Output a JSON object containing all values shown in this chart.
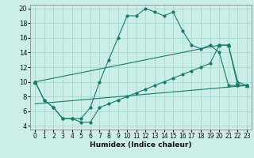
{
  "title": "",
  "xlabel": "Humidex (Indice chaleur)",
  "bg_color": "#cceee8",
  "grid_color": "#aaddcc",
  "line_color": "#1a7a6a",
  "xlim": [
    -0.5,
    23.5
  ],
  "ylim": [
    3.5,
    20.5
  ],
  "xticks": [
    0,
    1,
    2,
    3,
    4,
    5,
    6,
    7,
    8,
    9,
    10,
    11,
    12,
    13,
    14,
    15,
    16,
    17,
    18,
    19,
    20,
    21,
    22,
    23
  ],
  "yticks": [
    4,
    6,
    8,
    10,
    12,
    14,
    16,
    18,
    20
  ],
  "curve1_x": [
    0,
    1,
    2,
    3,
    4,
    5,
    6,
    7,
    8,
    9,
    10,
    11,
    12,
    13,
    14,
    15,
    16,
    17,
    18,
    19,
    20,
    21,
    22,
    23
  ],
  "curve1_y": [
    10,
    7.5,
    6.5,
    5,
    5,
    5,
    6.5,
    10,
    13,
    16,
    19,
    19,
    20,
    19.5,
    19,
    19.5,
    17,
    15,
    14.5,
    15,
    14,
    9.5,
    9.5,
    9.5
  ],
  "curve2_x": [
    0,
    1,
    2,
    3,
    4,
    5,
    6,
    7,
    8,
    9,
    10,
    11,
    12,
    13,
    14,
    15,
    16,
    17,
    18,
    19,
    20,
    21,
    22,
    23
  ],
  "curve2_y": [
    10,
    7.5,
    6.5,
    5,
    5,
    4.5,
    4.5,
    6.5,
    7,
    7.5,
    8,
    8.5,
    9,
    9.5,
    10,
    10.5,
    11,
    11.5,
    12,
    12.5,
    15,
    15,
    9.5,
    9.5
  ],
  "curve3_x": [
    0,
    20,
    21,
    22,
    23
  ],
  "curve3_y": [
    10,
    15,
    15,
    10,
    9.5
  ],
  "curve4_x": [
    0,
    23
  ],
  "curve4_y": [
    7,
    9.5
  ]
}
